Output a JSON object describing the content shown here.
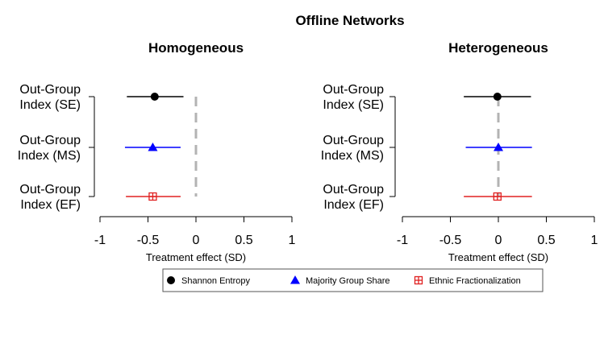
{
  "title": "Offline Networks",
  "legend": {
    "items": [
      {
        "label": "Shannon Entropy",
        "marker": "circle",
        "color": "#000000"
      },
      {
        "label": "Majority Group Share",
        "marker": "triangle",
        "color": "#0000ff"
      },
      {
        "label": "Ethnic Fractionalization",
        "marker": "boxed-plus",
        "color": "#e02020"
      }
    ],
    "placement": "bottom-center"
  },
  "chart_data": [
    {
      "type": "forest",
      "title": "Homogeneous",
      "xlabel": "Treatment effect (SD)",
      "xlim": [
        -1,
        1
      ],
      "xticks": [
        "-1",
        "-0.5",
        "0",
        "0.5",
        "1"
      ],
      "reference_line": 0,
      "categories": [
        {
          "line1": "Out-Group",
          "line2": "Index (SE)"
        },
        {
          "line1": "Out-Group",
          "line2": "Index (MS)"
        },
        {
          "line1": "Out-Group",
          "line2": "Index (EF)"
        }
      ],
      "series": [
        {
          "name": "Shannon Entropy",
          "estimate": -0.43,
          "lower": -0.72,
          "upper": -0.13
        },
        {
          "name": "Majority Group Share",
          "estimate": -0.45,
          "lower": -0.74,
          "upper": -0.16
        },
        {
          "name": "Ethnic Fractionalization",
          "estimate": -0.45,
          "lower": -0.73,
          "upper": -0.16
        }
      ]
    },
    {
      "type": "forest",
      "title": "Heterogeneous",
      "xlabel": "Treatment effect (SD)",
      "xlim": [
        -1,
        1
      ],
      "xticks": [
        "-1",
        "-0.5",
        "0",
        "0.5",
        "1"
      ],
      "reference_line": 0,
      "categories": [
        {
          "line1": "Out-Group",
          "line2": "Index (SE)"
        },
        {
          "line1": "Out-Group",
          "line2": "Index (MS)"
        },
        {
          "line1": "Out-Group",
          "line2": "Index (EF)"
        }
      ],
      "series": [
        {
          "name": "Shannon Entropy",
          "estimate": -0.01,
          "lower": -0.36,
          "upper": 0.34
        },
        {
          "name": "Majority Group Share",
          "estimate": 0.0,
          "lower": -0.34,
          "upper": 0.35
        },
        {
          "name": "Ethnic Fractionalization",
          "estimate": -0.01,
          "lower": -0.36,
          "upper": 0.35
        }
      ]
    }
  ]
}
